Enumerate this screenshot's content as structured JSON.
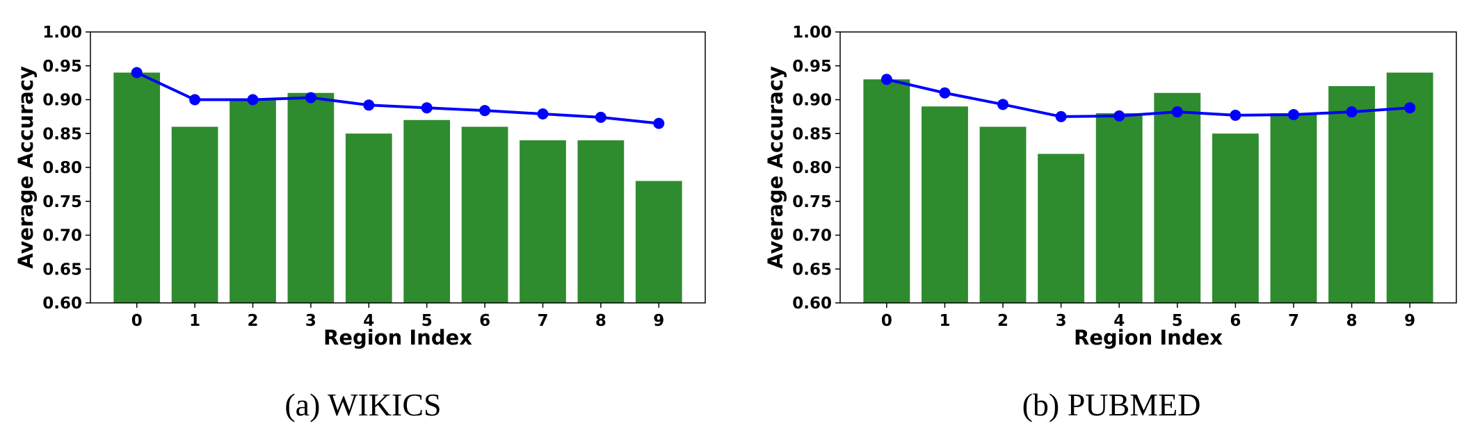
{
  "chart_data": [
    {
      "type": "bar",
      "caption": "(a) WIKICS",
      "xlabel": "Region Index",
      "ylabel": "Average Accuracy",
      "ylim": [
        0.6,
        1.0
      ],
      "ytick_labels": [
        "0.60",
        "0.65",
        "0.70",
        "0.75",
        "0.80",
        "0.85",
        "0.90",
        "0.95",
        "1.00"
      ],
      "categories": [
        "0",
        "1",
        "2",
        "3",
        "4",
        "5",
        "6",
        "7",
        "8",
        "9"
      ],
      "series": [
        {
          "name": "bars",
          "kind": "bar",
          "color": "#2e8b2e",
          "values": [
            0.94,
            0.86,
            0.9,
            0.91,
            0.85,
            0.87,
            0.86,
            0.84,
            0.84,
            0.78
          ]
        },
        {
          "name": "line",
          "kind": "line",
          "color": "#0000ff",
          "values": [
            0.94,
            0.9,
            0.9,
            0.903,
            0.892,
            0.888,
            0.884,
            0.879,
            0.874,
            0.865
          ]
        }
      ]
    },
    {
      "type": "bar",
      "caption": "(b) PUBMED",
      "xlabel": "Region Index",
      "ylabel": "Average Accuracy",
      "ylim": [
        0.6,
        1.0
      ],
      "ytick_labels": [
        "0.60",
        "0.65",
        "0.70",
        "0.75",
        "0.80",
        "0.85",
        "0.90",
        "0.95",
        "1.00"
      ],
      "categories": [
        "0",
        "1",
        "2",
        "3",
        "4",
        "5",
        "6",
        "7",
        "8",
        "9"
      ],
      "series": [
        {
          "name": "bars",
          "kind": "bar",
          "color": "#2e8b2e",
          "values": [
            0.93,
            0.89,
            0.86,
            0.82,
            0.88,
            0.91,
            0.85,
            0.88,
            0.92,
            0.94
          ]
        },
        {
          "name": "line",
          "kind": "line",
          "color": "#0000ff",
          "values": [
            0.93,
            0.91,
            0.893,
            0.875,
            0.876,
            0.882,
            0.877,
            0.878,
            0.882,
            0.888
          ]
        }
      ]
    }
  ]
}
